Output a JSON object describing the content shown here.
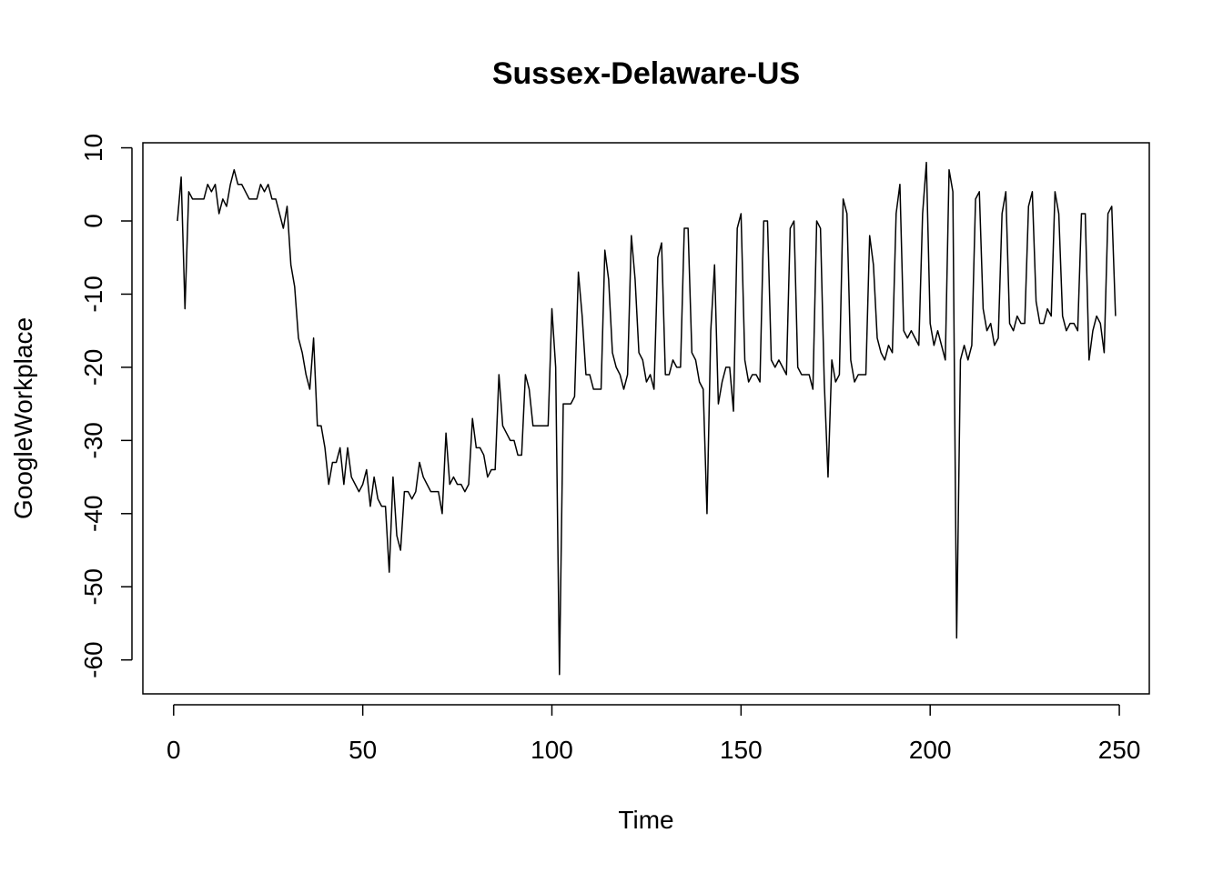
{
  "chart_data": {
    "type": "line",
    "title": "Sussex-Delaware-US",
    "xlabel": "Time",
    "ylabel": "GoogleWorkplace",
    "xlim": [
      1,
      248
    ],
    "ylim": [
      -62,
      8
    ],
    "x_ticks": [
      0,
      50,
      100,
      150,
      200,
      250
    ],
    "y_ticks": [
      10,
      0,
      -10,
      -20,
      -30,
      -40,
      -50,
      -60
    ],
    "x_tick_labels": [
      "0",
      "50",
      "100",
      "150",
      "200",
      "250"
    ],
    "y_tick_labels": [
      "10",
      "0",
      "-10",
      "-20",
      "-30",
      "-40",
      "-50",
      "-60"
    ],
    "grid": false,
    "legend": "none",
    "line_color": "#000000",
    "x_start": 1,
    "values": [
      0,
      6,
      -12,
      4,
      3,
      3,
      3,
      3,
      5,
      4,
      5,
      1,
      3,
      2,
      5,
      7,
      5,
      5,
      4,
      3,
      3,
      3,
      5,
      4,
      5,
      3,
      3,
      1,
      -1,
      2,
      -6,
      -9,
      -16,
      -18,
      -21,
      -23,
      -16,
      -28,
      -28,
      -31,
      -36,
      -33,
      -33,
      -31,
      -36,
      -31,
      -35,
      -36,
      -37,
      -36,
      -34,
      -39,
      -35,
      -38,
      -39,
      -39,
      -48,
      -35,
      -43,
      -45,
      -37,
      -37,
      -38,
      -37,
      -33,
      -35,
      -36,
      -37,
      -37,
      -37,
      -40,
      -29,
      -36,
      -35,
      -36,
      -36,
      -37,
      -36,
      -27,
      -31,
      -31,
      -32,
      -35,
      -34,
      -34,
      -21,
      -28,
      -29,
      -30,
      -30,
      -32,
      -32,
      -21,
      -23,
      -28,
      -28,
      -28,
      -28,
      -28,
      -12,
      -20,
      -62,
      -25,
      -25,
      -25,
      -24,
      -7,
      -13,
      -21,
      -21,
      -23,
      -23,
      -23,
      -4,
      -8,
      -18,
      -20,
      -21,
      -23,
      -21,
      -2,
      -8,
      -18,
      -19,
      -22,
      -21,
      -23,
      -5,
      -3,
      -21,
      -21,
      -19,
      -20,
      -20,
      -1,
      -1,
      -18,
      -19,
      -22,
      -23,
      -40,
      -15,
      -6,
      -25,
      -22,
      -20,
      -20,
      -26,
      -1,
      1,
      -19,
      -22,
      -21,
      -21,
      -22,
      0,
      0,
      -19,
      -20,
      -19,
      -20,
      -21,
      -1,
      0,
      -20,
      -21,
      -21,
      -21,
      -23,
      0,
      -1,
      -22,
      -35,
      -19,
      -22,
      -21,
      3,
      1,
      -19,
      -22,
      -21,
      -21,
      -21,
      -2,
      -6,
      -16,
      -18,
      -19,
      -17,
      -18,
      1,
      5,
      -15,
      -16,
      -15,
      -16,
      -17,
      1,
      8,
      -14,
      -17,
      -15,
      -17,
      -19,
      7,
      4,
      -57,
      -19,
      -17,
      -19,
      -17,
      3,
      4,
      -12,
      -15,
      -14,
      -17,
      -16,
      1,
      4,
      -14,
      -15,
      -13,
      -14,
      -14,
      2,
      4,
      -11,
      -14,
      -14,
      -12,
      -13,
      4,
      1,
      -13,
      -15,
      -14,
      -14,
      -15,
      1,
      1,
      -19,
      -15,
      -13,
      -14,
      -18,
      1,
      2,
      -13
    ]
  }
}
